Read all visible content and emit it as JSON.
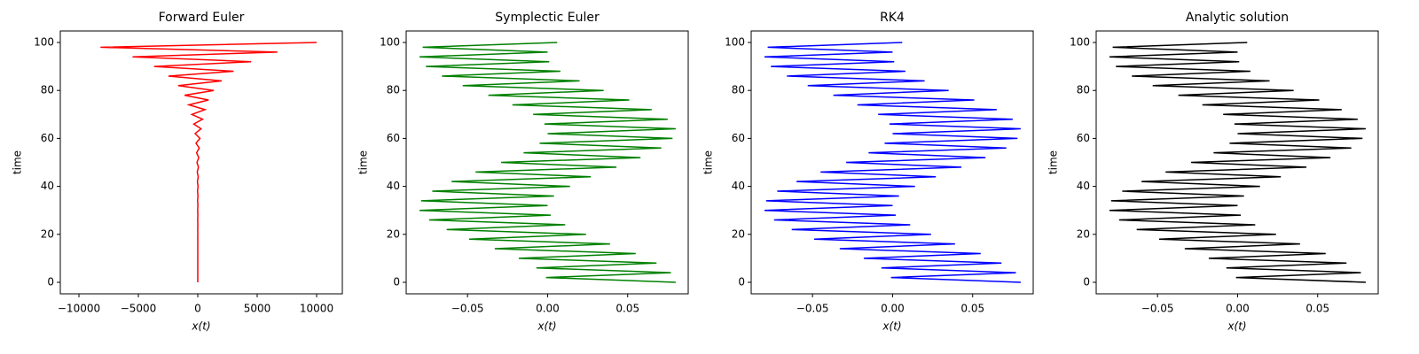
{
  "chart_data": [
    {
      "type": "line",
      "title": "Forward Euler",
      "xlabel": "x(t)",
      "ylabel": "time",
      "color": "#ff0000",
      "x": [
        0,
        -1,
        1,
        -1,
        1,
        -1,
        2,
        -2,
        2,
        -3,
        3,
        -4,
        5,
        -6,
        7,
        -9,
        11,
        -14,
        17,
        -20,
        25,
        -30,
        37,
        -45,
        55,
        -67,
        82,
        -101,
        123,
        -150,
        183,
        -224,
        273,
        -334,
        408,
        -498,
        608,
        -743,
        907,
        -1108,
        1353,
        -1653,
        2019,
        -2466,
        3012,
        -3679,
        4493,
        -5488,
        6703,
        -8187,
        10000
      ],
      "values": [
        0,
        2,
        4,
        6,
        8,
        10,
        12,
        14,
        16,
        18,
        20,
        22,
        24,
        26,
        28,
        30,
        32,
        34,
        36,
        38,
        40,
        42,
        44,
        46,
        48,
        50,
        52,
        54,
        56,
        58,
        60,
        62,
        64,
        66,
        68,
        70,
        72,
        74,
        76,
        78,
        80,
        82,
        84,
        86,
        88,
        90,
        92,
        94,
        96,
        98,
        100
      ],
      "xlim": [
        -11567,
        12164
      ],
      "xticks": [
        {
          "value": -10000,
          "label": "−10000"
        },
        {
          "value": -5000,
          "label": "−5000"
        },
        0,
        5000,
        10000
      ],
      "ylim": [
        -4.8,
        104.8
      ],
      "yticks": [
        0,
        20,
        40,
        60,
        80,
        100
      ]
    },
    {
      "type": "line",
      "title": "Symplectic Euler",
      "xlabel": "x(t)",
      "ylabel": "time",
      "color": "#008000",
      "x": [
        0.08,
        -0.001,
        0.077,
        -0.007,
        0.068,
        -0.018,
        0.055,
        -0.033,
        0.039,
        -0.049,
        0.024,
        -0.063,
        0.011,
        -0.074,
        0.002,
        -0.08,
        0,
        -0.079,
        0.004,
        -0.072,
        0.014,
        -0.06,
        0.027,
        -0.045,
        0.043,
        -0.029,
        0.058,
        -0.015,
        0.071,
        -0.005,
        0.078,
        0,
        0.08,
        -0.002,
        0.075,
        -0.009,
        0.065,
        -0.022,
        0.051,
        -0.037,
        0.035,
        -0.053,
        0.02,
        -0.066,
        0.008,
        -0.076,
        0.001,
        -0.08,
        0,
        -0.078,
        0.006
      ],
      "values": [
        0,
        2,
        4,
        6,
        8,
        10,
        12,
        14,
        16,
        18,
        20,
        22,
        24,
        26,
        28,
        30,
        32,
        34,
        36,
        38,
        40,
        42,
        44,
        46,
        48,
        50,
        52,
        54,
        56,
        58,
        60,
        62,
        64,
        66,
        68,
        70,
        72,
        74,
        76,
        78,
        80,
        82,
        84,
        86,
        88,
        90,
        92,
        94,
        96,
        98,
        100
      ],
      "xlim": [
        -0.0883,
        0.0878
      ],
      "xticks": [
        {
          "value": -0.05,
          "label": "−0.05"
        },
        {
          "value": 0,
          "label": "0.00"
        },
        0.05
      ],
      "ylim": [
        -4.8,
        104.8
      ],
      "yticks": [
        0,
        20,
        40,
        60,
        80,
        100
      ]
    },
    {
      "type": "line",
      "title": "RK4",
      "xlabel": "x(t)",
      "ylabel": "time",
      "color": "#0000ff",
      "x": [
        0.08,
        -0.001,
        0.077,
        -0.007,
        0.068,
        -0.018,
        0.055,
        -0.033,
        0.039,
        -0.049,
        0.024,
        -0.063,
        0.011,
        -0.074,
        0.002,
        -0.08,
        0,
        -0.079,
        0.004,
        -0.072,
        0.014,
        -0.06,
        0.027,
        -0.045,
        0.043,
        -0.029,
        0.058,
        -0.015,
        0.071,
        -0.005,
        0.078,
        0,
        0.08,
        -0.002,
        0.075,
        -0.009,
        0.065,
        -0.022,
        0.051,
        -0.037,
        0.035,
        -0.053,
        0.02,
        -0.066,
        0.008,
        -0.076,
        0.001,
        -0.08,
        0,
        -0.078,
        0.006
      ],
      "values": [
        0,
        2,
        4,
        6,
        8,
        10,
        12,
        14,
        16,
        18,
        20,
        22,
        24,
        26,
        28,
        30,
        32,
        34,
        36,
        38,
        40,
        42,
        44,
        46,
        48,
        50,
        52,
        54,
        56,
        58,
        60,
        62,
        64,
        66,
        68,
        70,
        72,
        74,
        76,
        78,
        80,
        82,
        84,
        86,
        88,
        90,
        92,
        94,
        96,
        98,
        100
      ],
      "xlim": [
        -0.0883,
        0.0878
      ],
      "xticks": [
        {
          "value": -0.05,
          "label": "−0.05"
        },
        {
          "value": 0,
          "label": "0.00"
        },
        0.05
      ],
      "ylim": [
        -4.8,
        104.8
      ],
      "yticks": [
        0,
        20,
        40,
        60,
        80,
        100
      ]
    },
    {
      "type": "line",
      "title": "Analytic solution",
      "xlabel": "x(t)",
      "ylabel": "time",
      "color": "#000000",
      "x": [
        0.08,
        -0.001,
        0.077,
        -0.007,
        0.068,
        -0.018,
        0.055,
        -0.033,
        0.039,
        -0.049,
        0.024,
        -0.063,
        0.011,
        -0.074,
        0.002,
        -0.08,
        0,
        -0.079,
        0.004,
        -0.072,
        0.014,
        -0.06,
        0.027,
        -0.045,
        0.043,
        -0.029,
        0.058,
        -0.015,
        0.071,
        -0.005,
        0.078,
        0,
        0.08,
        -0.002,
        0.075,
        -0.009,
        0.065,
        -0.022,
        0.051,
        -0.037,
        0.035,
        -0.053,
        0.02,
        -0.066,
        0.008,
        -0.076,
        0.001,
        -0.08,
        0,
        -0.078,
        0.006
      ],
      "values": [
        0,
        2,
        4,
        6,
        8,
        10,
        12,
        14,
        16,
        18,
        20,
        22,
        24,
        26,
        28,
        30,
        32,
        34,
        36,
        38,
        40,
        42,
        44,
        46,
        48,
        50,
        52,
        54,
        56,
        58,
        60,
        62,
        64,
        66,
        68,
        70,
        72,
        74,
        76,
        78,
        80,
        82,
        84,
        86,
        88,
        90,
        92,
        94,
        96,
        98,
        100
      ],
      "xlim": [
        -0.0883,
        0.0878
      ],
      "xticks": [
        {
          "value": -0.05,
          "label": "−0.05"
        },
        {
          "value": 0,
          "label": "0.00"
        },
        0.05
      ],
      "ylim": [
        -4.8,
        104.8
      ],
      "yticks": [
        0,
        20,
        40,
        60,
        80,
        100
      ]
    }
  ]
}
